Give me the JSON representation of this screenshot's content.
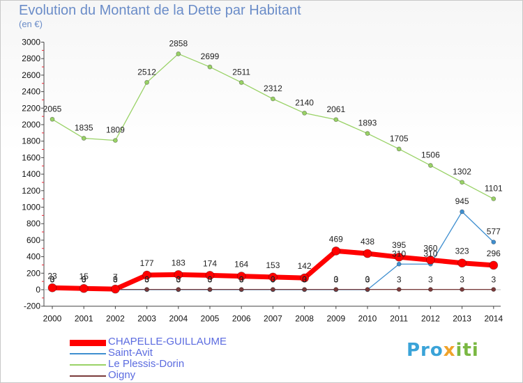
{
  "title": "Evolution du Montant de la Dette par Habitant",
  "subtitle": "(en €)",
  "brand": "Proxiti",
  "chart_data": {
    "type": "line",
    "title": "Evolution du Montant de la Dette par Habitant",
    "subtitle": "(en €)",
    "ylim": [
      -200,
      3000
    ],
    "yticks": [
      -200,
      0,
      200,
      400,
      600,
      800,
      1000,
      1200,
      1400,
      1600,
      1800,
      2000,
      2200,
      2400,
      2600,
      2800,
      3000
    ],
    "x": [
      "2000",
      "2001",
      "2002",
      "2003",
      "2004",
      "2005",
      "2006",
      "2007",
      "2008",
      "2009",
      "2010",
      "2011",
      "2012",
      "2013",
      "2014"
    ],
    "grid": false,
    "legend": "bottom-left",
    "series": [
      {
        "name": "Le Plessis-Dorin",
        "color": "#99d266",
        "values": [
          2065,
          1835,
          1809,
          2512,
          2858,
          2699,
          2511,
          2312,
          2140,
          2061,
          1893,
          1705,
          1506,
          1302,
          1101
        ]
      },
      {
        "name": "Saint-Avit",
        "color": "#3f8fd0",
        "values": [
          0,
          0,
          0,
          0,
          0,
          0,
          0,
          0,
          0,
          0,
          0,
          310,
          310,
          945,
          577
        ],
        "labels": [
          "0",
          "0",
          "0",
          "0",
          "0",
          "0",
          "0",
          "0",
          "0",
          "0",
          "0",
          "310",
          "310",
          "945",
          "577"
        ]
      },
      {
        "name": "Oigny",
        "color": "#7a3a3a",
        "values": [
          3,
          3,
          3,
          3,
          3,
          3,
          3,
          3,
          3,
          3,
          3,
          3,
          3,
          3,
          3
        ],
        "labels": [
          "3",
          "3",
          "3",
          "3",
          "3",
          "3",
          "3",
          "3",
          "3",
          "3",
          "3",
          "3",
          "3",
          "3",
          "3"
        ]
      },
      {
        "name": "CHAPELLE-GUILLAUME",
        "color": "#ff0000",
        "values": [
          23,
          15,
          7,
          177,
          183,
          174,
          164,
          153,
          142,
          469,
          438,
          395,
          360,
          323,
          296
        ]
      }
    ]
  }
}
